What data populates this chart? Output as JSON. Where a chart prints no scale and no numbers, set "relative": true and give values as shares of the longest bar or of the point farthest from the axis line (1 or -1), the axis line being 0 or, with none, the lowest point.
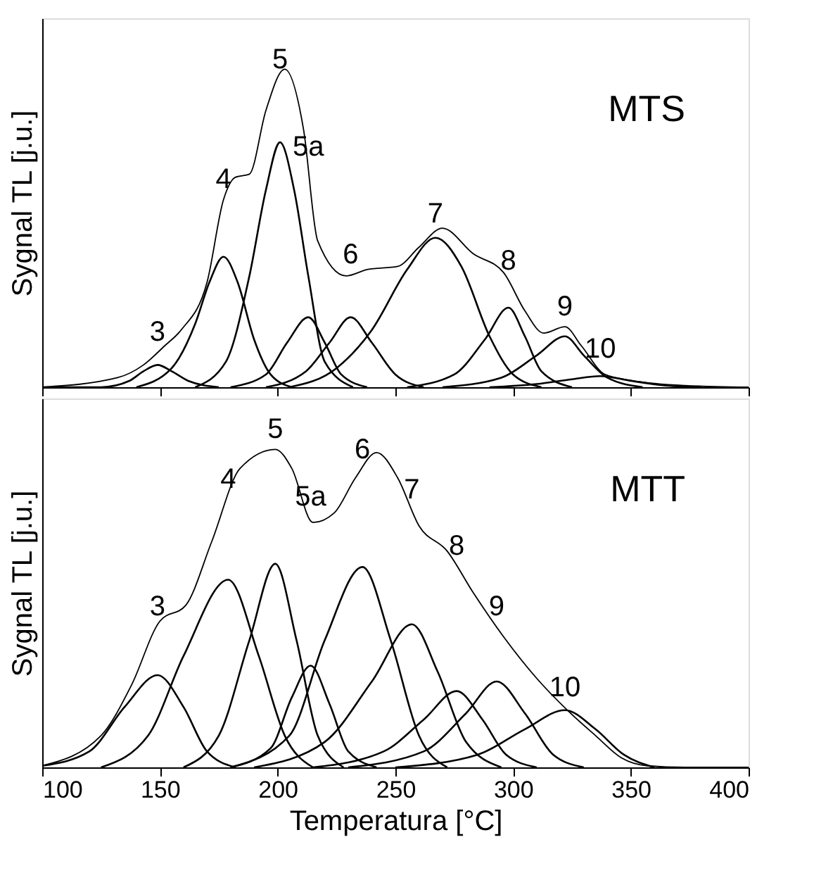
{
  "chart_data": [
    {
      "type": "line",
      "relative": true,
      "ylabel": "Sygnal TL [j.u.]",
      "xlim": [
        100,
        400
      ],
      "xticks": [
        100,
        150,
        200,
        250,
        300,
        350,
        400
      ],
      "tick_labels": false,
      "grid": false,
      "marker": "none",
      "line_style": "solid",
      "annotations": [
        "MTS",
        "3",
        "4",
        "5",
        "5a",
        "6",
        "7",
        "8",
        "9",
        "10"
      ],
      "series": [
        {
          "color": "#000000",
          "x": [
            100,
            132,
            143,
            152,
            159,
            170,
            177,
            182,
            188,
            195,
            203,
            211,
            217,
            229,
            238,
            251,
            260,
            270,
            283,
            296,
            305,
            313,
            322,
            329,
            339,
            351,
            373,
            400
          ],
          "values": [
            0,
            0.03,
            0.07,
            0.13,
            0.18,
            0.33,
            0.59,
            0.66,
            0.67,
            0.87,
            1,
            0.81,
            0.46,
            0.35,
            0.37,
            0.38,
            0.44,
            0.5,
            0.42,
            0.36,
            0.24,
            0.17,
            0.19,
            0.13,
            0.04,
            0.02,
            0.005,
            0
          ]
        },
        {
          "color": "#000000",
          "x": [
            100,
            125,
            137,
            143,
            149,
            155,
            162,
            175
          ],
          "values": [
            0,
            0,
            0.02,
            0.05,
            0.07,
            0.05,
            0.02,
            0
          ]
        },
        {
          "color": "#000000",
          "x": [
            140,
            155,
            165,
            171,
            177,
            183,
            190,
            197,
            206
          ],
          "values": [
            0,
            0.06,
            0.2,
            0.33,
            0.41,
            0.33,
            0.15,
            0.04,
            0
          ]
        },
        {
          "color": "#000000",
          "x": [
            165,
            178,
            188,
            195,
            201,
            207,
            213,
            220,
            232
          ],
          "values": [
            0,
            0.08,
            0.35,
            0.62,
            0.77,
            0.62,
            0.35,
            0.08,
            0
          ]
        },
        {
          "color": "#000000",
          "x": [
            180,
            195,
            204,
            213,
            220,
            227,
            238
          ],
          "values": [
            0,
            0.04,
            0.14,
            0.22,
            0.14,
            0.04,
            0
          ]
        },
        {
          "color": "#000000",
          "x": [
            195,
            212,
            222,
            231,
            240,
            250,
            262
          ],
          "values": [
            0,
            0.05,
            0.14,
            0.22,
            0.14,
            0.04,
            0
          ]
        },
        {
          "color": "#000000",
          "x": [
            205,
            225,
            240,
            255,
            267,
            278,
            290,
            300,
            312
          ],
          "values": [
            0,
            0.06,
            0.18,
            0.37,
            0.47,
            0.38,
            0.16,
            0.04,
            0
          ]
        },
        {
          "color": "#000000",
          "x": [
            255,
            275,
            288,
            298,
            305,
            312,
            325
          ],
          "values": [
            0,
            0.04,
            0.15,
            0.25,
            0.16,
            0.05,
            0
          ]
        },
        {
          "color": "#000000",
          "x": [
            270,
            295,
            310,
            322,
            330,
            340,
            355
          ],
          "values": [
            0,
            0.03,
            0.1,
            0.16,
            0.1,
            0.03,
            0
          ]
        },
        {
          "color": "#000000",
          "x": [
            290,
            310,
            325,
            337,
            350,
            365,
            380
          ],
          "values": [
            0,
            0.01,
            0.025,
            0.035,
            0.02,
            0.005,
            0
          ]
        }
      ]
    },
    {
      "type": "line",
      "relative": true,
      "ylabel": "Sygnal TL [j.u.]",
      "xlabel": "Temperatura [°C]",
      "xlim": [
        100,
        400
      ],
      "xticks": [
        100,
        150,
        200,
        250,
        300,
        350,
        400
      ],
      "tick_labels": "x",
      "grid": false,
      "marker": "none",
      "line_style": "solid",
      "annotations": [
        "MTT",
        "3",
        "4",
        "5",
        "5a",
        "6",
        "7",
        "8",
        "9",
        "10"
      ],
      "series": [
        {
          "color": "#000000",
          "x": [
            100,
            125,
            138,
            150,
            161,
            172,
            184,
            199,
            206,
            215,
            224,
            233,
            242,
            251,
            260,
            272,
            283,
            296,
            310,
            323,
            335,
            346,
            357,
            373,
            400
          ],
          "values": [
            0.005,
            0.1,
            0.26,
            0.46,
            0.51,
            0.71,
            0.94,
            1,
            0.94,
            0.77,
            0.8,
            0.91,
            0.99,
            0.91,
            0.76,
            0.68,
            0.55,
            0.41,
            0.28,
            0.18,
            0.1,
            0.03,
            0.005,
            0,
            0
          ]
        },
        {
          "color": "#000000",
          "x": [
            100,
            120,
            135,
            149,
            160,
            170,
            182
          ],
          "values": [
            0.005,
            0.05,
            0.19,
            0.29,
            0.19,
            0.05,
            0
          ]
        },
        {
          "color": "#000000",
          "x": [
            125,
            145,
            160,
            179,
            192,
            203,
            215
          ],
          "values": [
            0,
            0.1,
            0.35,
            0.59,
            0.35,
            0.1,
            0
          ]
        },
        {
          "color": "#000000",
          "x": [
            160,
            175,
            188,
            199,
            208,
            217,
            228
          ],
          "values": [
            0,
            0.1,
            0.4,
            0.64,
            0.4,
            0.1,
            0
          ]
        },
        {
          "color": "#000000",
          "x": [
            180,
            197,
            206,
            214,
            222,
            230,
            242
          ],
          "values": [
            0,
            0.06,
            0.22,
            0.32,
            0.2,
            0.05,
            0
          ]
        },
        {
          "color": "#000000",
          "x": [
            180,
            205,
            220,
            236,
            248,
            260,
            272
          ],
          "values": [
            0,
            0.1,
            0.4,
            0.63,
            0.4,
            0.1,
            0
          ]
        },
        {
          "color": "#000000",
          "x": [
            190,
            220,
            240,
            257,
            268,
            280,
            295
          ],
          "values": [
            0,
            0.08,
            0.27,
            0.45,
            0.3,
            0.08,
            0
          ]
        },
        {
          "color": "#000000",
          "x": [
            215,
            245,
            262,
            276,
            287,
            297,
            310
          ],
          "values": [
            0,
            0.05,
            0.15,
            0.24,
            0.15,
            0.04,
            0
          ]
        },
        {
          "color": "#000000",
          "x": [
            230,
            262,
            280,
            293,
            305,
            317,
            330
          ],
          "values": [
            0,
            0.05,
            0.17,
            0.27,
            0.17,
            0.04,
            0
          ]
        },
        {
          "color": "#000000",
          "x": [
            250,
            285,
            305,
            322,
            335,
            347,
            360
          ],
          "values": [
            0,
            0.04,
            0.12,
            0.18,
            0.12,
            0.04,
            0
          ]
        }
      ]
    }
  ]
}
